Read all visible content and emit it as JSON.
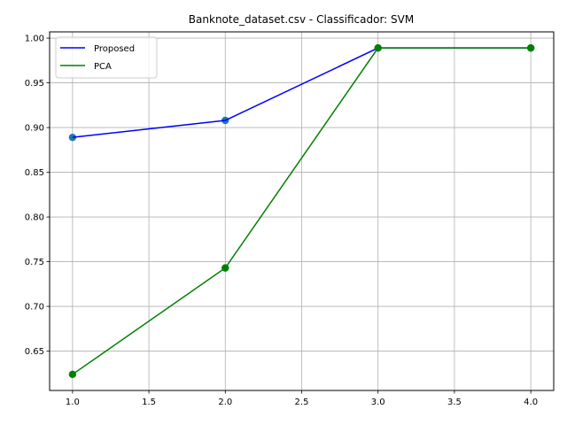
{
  "chart_data": {
    "type": "line",
    "title": "Banknote_dataset.csv - Classificador: SVM",
    "xlabel": "",
    "ylabel": "",
    "x": [
      1,
      2,
      3,
      4
    ],
    "xlim": [
      0.85,
      4.15
    ],
    "ylim": [
      0.606,
      1.007
    ],
    "xticks": [
      "1.0",
      "1.5",
      "2.0",
      "2.5",
      "3.0",
      "3.5",
      "4.0"
    ],
    "xtick_values": [
      1.0,
      1.5,
      2.0,
      2.5,
      3.0,
      3.5,
      4.0
    ],
    "yticks": [
      "0.65",
      "0.70",
      "0.75",
      "0.80",
      "0.85",
      "0.90",
      "0.95",
      "1.00"
    ],
    "ytick_values": [
      0.65,
      0.7,
      0.75,
      0.8,
      0.85,
      0.9,
      0.95,
      1.0
    ],
    "grid": true,
    "legend_position": "top-left",
    "series": [
      {
        "name": "Proposed",
        "values": [
          0.889,
          0.908,
          0.989,
          0.989
        ],
        "line_color": "#0000ff",
        "marker_color": "#1f77b4"
      },
      {
        "name": "PCA",
        "values": [
          0.624,
          0.743,
          0.989,
          0.989
        ],
        "line_color": "#008000",
        "marker_color": "#008000"
      }
    ]
  }
}
